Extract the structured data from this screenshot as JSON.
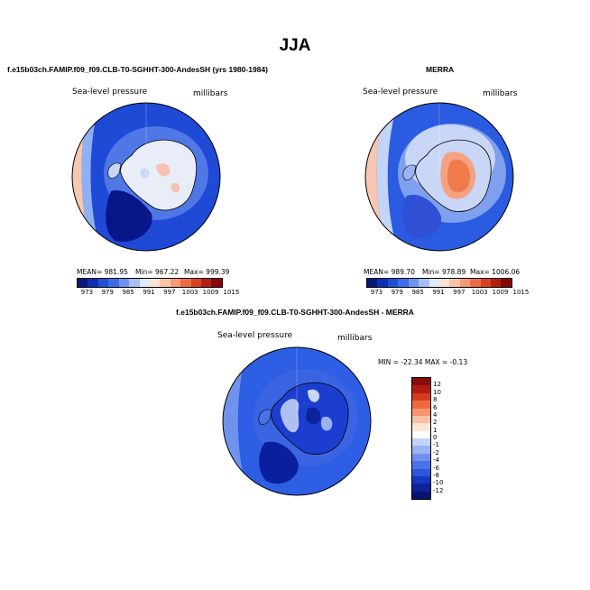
{
  "figure": {
    "title": "JJA"
  },
  "panels": [
    {
      "title": "f.e15b03ch.FAMIP.f09_f09.CLB-T0-SGHHT-300-AndesSH (yrs 1980-1984)",
      "variable": "Sea-level pressure",
      "units": "millibars",
      "mean_label": "MEAN= 981.95",
      "min_label": "Min= 967.22",
      "max_label": "Max= 999.39",
      "colorbar_ticks": [
        "973",
        "979",
        "985",
        "991",
        "997",
        "1003",
        "1009",
        "1015"
      ],
      "colors": {
        "outer": "#1e4ad6",
        "ring": "#4f77e6",
        "edge": "#f4c8b2",
        "continent": "#e8edf8",
        "interior": "#f5c2b0",
        "pocket": "#08168a"
      }
    },
    {
      "title": "MERRA",
      "variable": "Sea-level pressure",
      "units": "millibars",
      "mean_label": "MEAN= 989.70",
      "min_label": "Min= 978.89",
      "max_label": "Max= 1006.06",
      "colorbar_ticks": [
        "973",
        "979",
        "985",
        "991",
        "997",
        "1003",
        "1009",
        "1015"
      ],
      "colors": {
        "outer": "#2a5be0",
        "ring": "#7ea0ee",
        "edge": "#f6c6b0",
        "continent": "#c9d6f5",
        "interior": "#ef7a4c",
        "pocket": "#3050d6"
      }
    },
    {
      "title": "f.e15b03ch.FAMIP.f09_f09.CLB-T0-SGHHT-300-AndesSH - MERRA",
      "variable": "Sea-level pressure",
      "units": "millibars",
      "minmax_label": "MIN = -22.34 MAX =  -0.13",
      "colorbar_ticks": [
        "12",
        "10",
        "8",
        "6",
        "4",
        "2",
        "1",
        "0",
        "-1",
        "-2",
        "-4",
        "-6",
        "-8",
        "-10",
        "-12"
      ],
      "colors": {
        "outer": "#2d5ee4",
        "ring": "#5a82ea",
        "edge": "#3a64e2",
        "continent": "#aebff0",
        "interior": "#1c3ed0",
        "pocket": "#0a1f9e"
      }
    }
  ],
  "colorbars": {
    "horizontal": [
      "#08167a",
      "#0c2fb4",
      "#1f4fd9",
      "#3d6de8",
      "#6f93ef",
      "#a7bdf4",
      "#dfe7fb",
      "#fbe4d6",
      "#f9c3a8",
      "#f59a77",
      "#ee6c44",
      "#d9401f",
      "#b51e12",
      "#870709"
    ],
    "vertical": [
      "#8a0a0a",
      "#b01c12",
      "#d63a1e",
      "#ee6a3e",
      "#f5966f",
      "#f9c0a2",
      "#fbe6d6",
      "#ffffff",
      "#c3d2f6",
      "#9ab3f1",
      "#6f91ec",
      "#4a72e7",
      "#2b57de",
      "#1638c0",
      "#0c239a",
      "#081270"
    ]
  }
}
